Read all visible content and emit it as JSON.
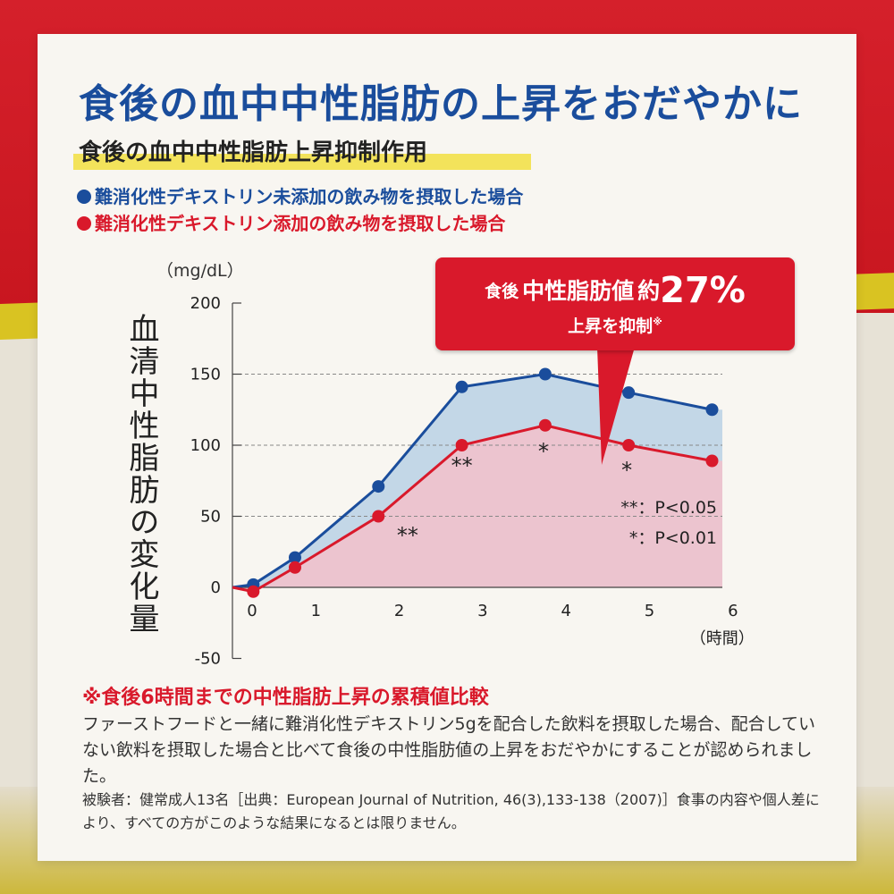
{
  "title": "食後の血中中性脂肪の上昇をおだやかに",
  "subtitle": "食後の血中中性脂肪上昇抑制作用",
  "legend": {
    "blue": "難消化性デキストリン未添加の飲み物を摂取した場合",
    "red": "難消化性デキストリン添加の飲み物を摂取した場合"
  },
  "colors": {
    "blue": "#1a4d9c",
    "red": "#d9192b",
    "blue_fill": "#bcd4e6",
    "red_fill": "#ecc4cf"
  },
  "callout": {
    "label_a": "食後",
    "label_b": "中性脂肪値",
    "label_c": "約",
    "value": "27%",
    "line2": "上昇を抑制",
    "mark": "※"
  },
  "chart_data": {
    "type": "line",
    "ylabel": "血清中性脂肪の変化量",
    "unit": "（mg/dL）",
    "xlabel": "（時間）",
    "ylim": [
      -50,
      200
    ],
    "yticks": [
      200,
      150,
      100,
      50,
      0,
      -50
    ],
    "xticks": [
      0,
      1,
      2,
      3,
      4,
      5,
      6
    ],
    "grid_y": [
      150,
      100,
      50
    ],
    "series": [
      {
        "name": "難消化性デキストリン未添加の飲み物を摂取した場合",
        "color": "blue",
        "x": [
          0.25,
          0.75,
          1.75,
          2.75,
          3.75,
          4.75,
          5.75
        ],
        "values": [
          2,
          21,
          71,
          141,
          150,
          137,
          125
        ]
      },
      {
        "name": "難消化性デキストリン添加の飲み物を摂取した場合",
        "color": "red",
        "x": [
          0.25,
          0.75,
          1.75,
          2.75,
          3.75,
          4.75,
          5.75
        ],
        "values": [
          -3,
          14,
          50,
          100,
          114,
          100,
          89
        ]
      }
    ],
    "significance": [
      {
        "x": 2.1,
        "y": 39,
        "mark": "**"
      },
      {
        "x": 2.75,
        "y": 88,
        "mark": "**"
      },
      {
        "x": 3.75,
        "y": 98,
        "mark": "*"
      },
      {
        "x": 4.75,
        "y": 85,
        "mark": "*"
      }
    ],
    "sig_legend": [
      "**：P<0.05",
      "*：P<0.01"
    ]
  },
  "note": {
    "title": "※食後6時間までの中性脂肪上昇の累積値比較",
    "description": "ファーストフードと一緒に難消化性デキストリン5gを配合した飲料を摂取した場合、配合していない飲料を摂取した場合と比べて食後の中性脂肪値の上昇をおだやかにすることが認められました。",
    "source": "被験者：健常成人13名［出典：European Journal of Nutrition, 46(3),133-138（2007)］食事の内容や個人差により、すべての方がこのような結果になるとは限りません。"
  }
}
